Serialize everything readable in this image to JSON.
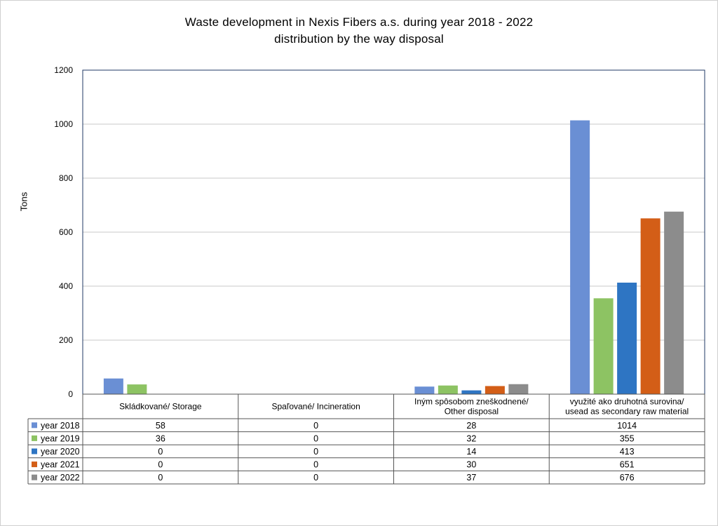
{
  "chart_data": {
    "type": "bar",
    "title": "Waste development in Nexis Fibers a.s. during year 2018 - 2022",
    "subtitle": "distribution by the way disposal",
    "ylabel": "Tons",
    "xlabel": "",
    "ylim": [
      0,
      1200
    ],
    "yticks": [
      0,
      200,
      400,
      600,
      800,
      1000,
      1200
    ],
    "grid": true,
    "legend": "data-table-left",
    "categories": [
      [
        "Skládkované/ Storage"
      ],
      [
        "Spaľované/ Incineration"
      ],
      [
        "Iným spôsobom zneškodnené/",
        "Other disposal"
      ],
      [
        "využité ako druhotná surovina/",
        "usead as secondary raw material"
      ]
    ],
    "series": [
      {
        "name": "year 2018",
        "color": "#6A8FD4",
        "values": [
          58,
          0,
          28,
          1014
        ]
      },
      {
        "name": "year 2019",
        "color": "#8DC363",
        "values": [
          36,
          0,
          32,
          355
        ]
      },
      {
        "name": "year 2020",
        "color": "#2E75C3",
        "values": [
          0,
          0,
          14,
          413
        ]
      },
      {
        "name": "year 2021",
        "color": "#D35E17",
        "values": [
          0,
          0,
          30,
          651
        ]
      },
      {
        "name": "year 2022",
        "color": "#8C8C8C",
        "values": [
          0,
          0,
          37,
          676
        ]
      }
    ]
  }
}
